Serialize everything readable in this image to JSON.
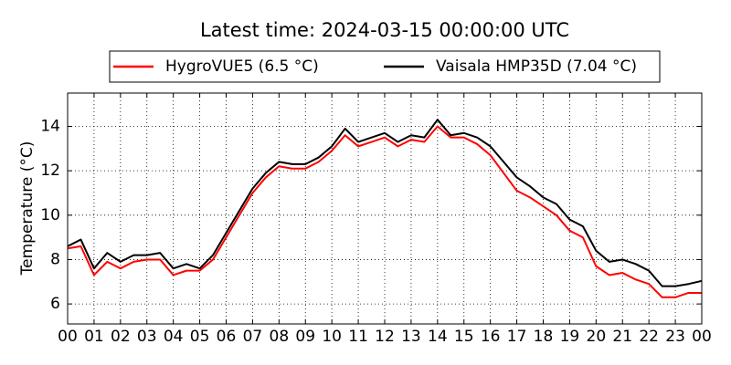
{
  "chart_data": {
    "type": "line",
    "title": "Latest time: 2024-03-15 00:00:00 UTC",
    "y_label": "Temperature (°C)",
    "x": [
      0,
      0.5,
      1,
      1.5,
      2,
      2.5,
      3,
      3.5,
      4,
      4.5,
      5,
      5.5,
      6,
      6.5,
      7,
      7.5,
      8,
      8.5,
      9,
      9.5,
      10,
      10.5,
      11,
      11.5,
      12,
      12.5,
      13,
      13.5,
      14,
      14.5,
      15,
      15.5,
      16,
      16.5,
      17,
      17.5,
      18,
      18.5,
      19,
      19.5,
      20,
      20.5,
      21,
      21.5,
      22,
      22.5,
      23,
      23.5,
      24
    ],
    "series": [
      {
        "name": "HygroVUE5 (6.5 °C)",
        "color": "#ff0000",
        "values": [
          8.5,
          8.6,
          7.3,
          7.9,
          7.6,
          7.9,
          8.0,
          8.0,
          7.3,
          7.5,
          7.5,
          8.0,
          9.0,
          10.0,
          11.0,
          11.7,
          12.2,
          12.1,
          12.1,
          12.4,
          12.9,
          13.6,
          13.1,
          13.3,
          13.5,
          13.1,
          13.4,
          13.3,
          14.0,
          13.5,
          13.5,
          13.2,
          12.7,
          11.9,
          11.1,
          10.8,
          10.4,
          10.0,
          9.3,
          9.0,
          7.7,
          7.3,
          7.4,
          7.1,
          6.9,
          6.3,
          6.3,
          6.5,
          6.5
        ]
      },
      {
        "name": "Vaisala HMP35D (7.04 °C)",
        "color": "#000000",
        "values": [
          8.6,
          8.9,
          7.6,
          8.3,
          7.9,
          8.2,
          8.2,
          8.3,
          7.6,
          7.8,
          7.6,
          8.2,
          9.2,
          10.2,
          11.2,
          11.9,
          12.4,
          12.3,
          12.3,
          12.6,
          13.1,
          13.9,
          13.3,
          13.5,
          13.7,
          13.3,
          13.6,
          13.5,
          14.3,
          13.6,
          13.7,
          13.5,
          13.1,
          12.4,
          11.7,
          11.3,
          10.8,
          10.5,
          9.8,
          9.5,
          8.4,
          7.9,
          8.0,
          7.8,
          7.5,
          6.8,
          6.8,
          6.9,
          7.04
        ]
      }
    ],
    "xlim": [
      0,
      24
    ],
    "xticks": [
      {
        "value": 0,
        "label": "00"
      },
      {
        "value": 1,
        "label": "01"
      },
      {
        "value": 2,
        "label": "02"
      },
      {
        "value": 3,
        "label": "03"
      },
      {
        "value": 4,
        "label": "04"
      },
      {
        "value": 5,
        "label": "05"
      },
      {
        "value": 6,
        "label": "06"
      },
      {
        "value": 7,
        "label": "07"
      },
      {
        "value": 8,
        "label": "08"
      },
      {
        "value": 9,
        "label": "09"
      },
      {
        "value": 10,
        "label": "10"
      },
      {
        "value": 11,
        "label": "11"
      },
      {
        "value": 12,
        "label": "12"
      },
      {
        "value": 13,
        "label": "13"
      },
      {
        "value": 14,
        "label": "14"
      },
      {
        "value": 15,
        "label": "15"
      },
      {
        "value": 16,
        "label": "16"
      },
      {
        "value": 17,
        "label": "17"
      },
      {
        "value": 18,
        "label": "18"
      },
      {
        "value": 19,
        "label": "19"
      },
      {
        "value": 20,
        "label": "20"
      },
      {
        "value": 21,
        "label": "21"
      },
      {
        "value": 22,
        "label": "22"
      },
      {
        "value": 23,
        "label": "23"
      },
      {
        "value": 24,
        "label": "00"
      }
    ],
    "ylim": [
      5.1,
      15.5
    ],
    "yticks": [
      6,
      8,
      10,
      12,
      14
    ],
    "grid": true,
    "legend": "top"
  }
}
